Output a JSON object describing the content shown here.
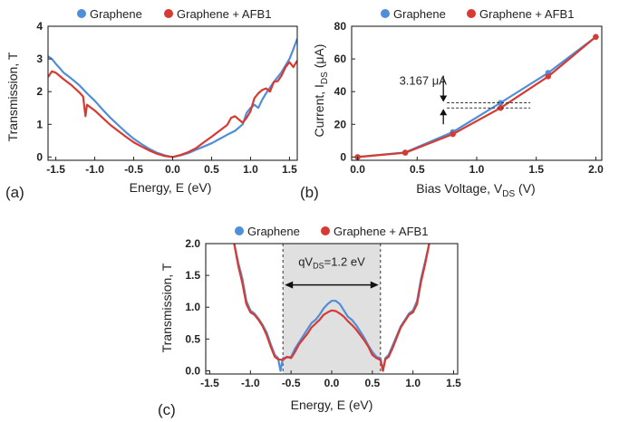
{
  "colors": {
    "graphene": "#4f8ed8",
    "afb1": "#d63a31",
    "shade": "#e0e0e0",
    "axis": "#222222"
  },
  "legend": {
    "graphene": "Graphene",
    "afb1": "Graphene + AFB1"
  },
  "panels": {
    "a": {
      "label": "(a)",
      "ylabel": "Transmission, T",
      "xlabel": "Energy, E (eV)"
    },
    "b": {
      "label": "(b)",
      "ylabel": "Current, I",
      "ylabel_sub": "DS",
      "ylabel_unit": " (μA)",
      "xlabel": "Bias Voltage, V",
      "xlabel_sub": "DS",
      "xlabel_unit": " (V)",
      "annotation": "3.167 μA"
    },
    "c": {
      "label": "(c)",
      "ylabel": "Transmission, T",
      "xlabel": "Energy, E (eV)",
      "annotation_pre": "qV",
      "annotation_sub": "DS",
      "annotation_post": "=1.2 eV"
    }
  },
  "chart_data": [
    {
      "type": "line",
      "panel": "a",
      "xlabel": "Energy, E (eV)",
      "ylabel": "Transmission, T",
      "xlim": [
        -1.6,
        1.6
      ],
      "ylim": [
        -0.1,
        4
      ],
      "xticks": [
        -1.5,
        -1.0,
        -0.5,
        0.0,
        0.5,
        1.0,
        1.5
      ],
      "xtick_labels": [
        "-1.5",
        "-1.0",
        "-0.5",
        "0.0",
        "0.5",
        "1.0",
        "1.5"
      ],
      "yticks": [
        0,
        1,
        2,
        3,
        4
      ],
      "ytick_labels": [
        "0",
        "1",
        "2",
        "3",
        "4"
      ],
      "grid": false,
      "legend_position": "top",
      "series": [
        {
          "name": "Graphene",
          "color": "#4f8ed8",
          "points": [
            [
              -1.6,
              3.08
            ],
            [
              -1.55,
              3.0
            ],
            [
              -1.5,
              2.85
            ],
            [
              -1.45,
              2.72
            ],
            [
              -1.4,
              2.58
            ],
            [
              -1.3,
              2.4
            ],
            [
              -1.2,
              2.2
            ],
            [
              -1.1,
              1.95
            ],
            [
              -1.0,
              1.72
            ],
            [
              -0.9,
              1.45
            ],
            [
              -0.8,
              1.2
            ],
            [
              -0.7,
              0.98
            ],
            [
              -0.6,
              0.76
            ],
            [
              -0.5,
              0.56
            ],
            [
              -0.4,
              0.4
            ],
            [
              -0.3,
              0.25
            ],
            [
              -0.2,
              0.13
            ],
            [
              -0.1,
              0.05
            ],
            [
              0.0,
              0.0
            ],
            [
              0.1,
              0.05
            ],
            [
              0.2,
              0.12
            ],
            [
              0.3,
              0.22
            ],
            [
              0.4,
              0.32
            ],
            [
              0.5,
              0.42
            ],
            [
              0.6,
              0.55
            ],
            [
              0.7,
              0.68
            ],
            [
              0.8,
              0.8
            ],
            [
              0.9,
              1.0
            ],
            [
              0.95,
              1.35
            ],
            [
              1.0,
              1.5
            ],
            [
              1.05,
              1.6
            ],
            [
              1.1,
              1.5
            ],
            [
              1.15,
              1.75
            ],
            [
              1.2,
              1.95
            ],
            [
              1.3,
              2.3
            ],
            [
              1.4,
              2.6
            ],
            [
              1.5,
              3.0
            ],
            [
              1.55,
              3.3
            ],
            [
              1.6,
              3.62
            ]
          ]
        },
        {
          "name": "Graphene + AFB1",
          "color": "#d63a31",
          "points": [
            [
              -1.6,
              2.45
            ],
            [
              -1.55,
              2.62
            ],
            [
              -1.5,
              2.58
            ],
            [
              -1.45,
              2.48
            ],
            [
              -1.4,
              2.38
            ],
            [
              -1.3,
              2.2
            ],
            [
              -1.2,
              1.98
            ],
            [
              -1.15,
              1.85
            ],
            [
              -1.12,
              1.25
            ],
            [
              -1.1,
              1.6
            ],
            [
              -1.0,
              1.42
            ],
            [
              -0.9,
              1.2
            ],
            [
              -0.8,
              0.98
            ],
            [
              -0.7,
              0.8
            ],
            [
              -0.6,
              0.62
            ],
            [
              -0.5,
              0.45
            ],
            [
              -0.4,
              0.32
            ],
            [
              -0.3,
              0.2
            ],
            [
              -0.2,
              0.1
            ],
            [
              -0.1,
              0.03
            ],
            [
              0.0,
              0.0
            ],
            [
              0.1,
              0.06
            ],
            [
              0.2,
              0.15
            ],
            [
              0.3,
              0.27
            ],
            [
              0.4,
              0.45
            ],
            [
              0.5,
              0.62
            ],
            [
              0.6,
              0.8
            ],
            [
              0.7,
              0.98
            ],
            [
              0.75,
              1.2
            ],
            [
              0.8,
              1.25
            ],
            [
              0.85,
              1.15
            ],
            [
              0.9,
              1.05
            ],
            [
              0.95,
              1.2
            ],
            [
              1.0,
              1.4
            ],
            [
              1.05,
              1.8
            ],
            [
              1.1,
              1.95
            ],
            [
              1.15,
              2.05
            ],
            [
              1.2,
              2.1
            ],
            [
              1.25,
              2.0
            ],
            [
              1.3,
              2.3
            ],
            [
              1.35,
              2.32
            ],
            [
              1.4,
              2.5
            ],
            [
              1.45,
              2.75
            ],
            [
              1.5,
              2.9
            ],
            [
              1.55,
              2.75
            ],
            [
              1.6,
              2.95
            ]
          ]
        }
      ]
    },
    {
      "type": "line",
      "panel": "b",
      "xlabel": "Bias Voltage, VDS (V)",
      "ylabel": "Current, IDS (μA)",
      "xlim": [
        -0.05,
        2.05
      ],
      "ylim": [
        -2,
        80
      ],
      "xticks": [
        0.0,
        0.5,
        1.0,
        1.5,
        2.0
      ],
      "xtick_labels": [
        "0.0",
        "0.5",
        "1.0",
        "1.5",
        "2.0"
      ],
      "yticks": [
        0,
        20,
        40,
        60,
        80
      ],
      "ytick_labels": [
        "0",
        "20",
        "40",
        "60",
        "80"
      ],
      "grid": false,
      "legend_position": "top",
      "annotation": {
        "text": "3.167 μA",
        "at_x": 1.2,
        "between": [
          33.17,
          30.0
        ]
      },
      "series": [
        {
          "name": "Graphene",
          "color": "#4f8ed8",
          "x": [
            0.0,
            0.4,
            0.8,
            1.2,
            1.6,
            2.0
          ],
          "y": [
            0.0,
            2.8,
            15.3,
            33.17,
            51.5,
            73.5
          ]
        },
        {
          "name": "Graphene + AFB1",
          "color": "#d63a31",
          "x": [
            0.0,
            0.4,
            0.8,
            1.2,
            1.6,
            2.0
          ],
          "y": [
            0.0,
            2.6,
            14.0,
            30.0,
            49.3,
            73.5
          ]
        }
      ]
    },
    {
      "type": "line",
      "panel": "c",
      "xlabel": "Energy, E (eV)",
      "ylabel": "Transmission, T",
      "xlim": [
        -1.55,
        1.55
      ],
      "ylim": [
        -0.05,
        2.0
      ],
      "xticks": [
        -1.5,
        -1.0,
        -0.5,
        0.0,
        0.5,
        1.0,
        1.5
      ],
      "xtick_labels": [
        "-1.5",
        "-1.0",
        "-0.5",
        "0.0",
        "0.5",
        "1.0",
        "1.5"
      ],
      "yticks": [
        0.0,
        0.5,
        1.0,
        1.5,
        2.0
      ],
      "ytick_labels": [
        "0.0",
        "0.5",
        "1.0",
        "1.5",
        "2.0"
      ],
      "grid": false,
      "legend_position": "top",
      "shaded_window": [
        -0.6,
        0.6
      ],
      "annotation": {
        "text": "qVDS=1.2 eV",
        "arrow": [
          -0.6,
          0.6
        ],
        "y": 1.65
      },
      "series": [
        {
          "name": "Graphene",
          "color": "#4f8ed8",
          "points": [
            [
              -1.2,
              2.0
            ],
            [
              -1.15,
              1.7
            ],
            [
              -1.1,
              1.45
            ],
            [
              -1.05,
              1.1
            ],
            [
              -1.0,
              0.95
            ],
            [
              -0.95,
              0.9
            ],
            [
              -0.9,
              0.82
            ],
            [
              -0.85,
              0.72
            ],
            [
              -0.8,
              0.6
            ],
            [
              -0.75,
              0.42
            ],
            [
              -0.7,
              0.25
            ],
            [
              -0.66,
              0.2
            ],
            [
              -0.63,
              0.0
            ],
            [
              -0.6,
              0.2
            ],
            [
              -0.5,
              0.22
            ],
            [
              -0.45,
              0.35
            ],
            [
              -0.4,
              0.45
            ],
            [
              -0.3,
              0.65
            ],
            [
              -0.25,
              0.75
            ],
            [
              -0.2,
              0.8
            ],
            [
              -0.15,
              0.88
            ],
            [
              -0.1,
              0.98
            ],
            [
              -0.05,
              1.05
            ],
            [
              0.0,
              1.1
            ],
            [
              0.05,
              1.1
            ],
            [
              0.1,
              1.05
            ],
            [
              0.15,
              0.95
            ],
            [
              0.2,
              0.85
            ],
            [
              0.25,
              0.8
            ],
            [
              0.3,
              0.72
            ],
            [
              0.4,
              0.52
            ],
            [
              0.45,
              0.4
            ],
            [
              0.5,
              0.3
            ],
            [
              0.55,
              0.22
            ],
            [
              0.6,
              0.2
            ],
            [
              0.63,
              0.0
            ],
            [
              0.66,
              0.2
            ],
            [
              0.7,
              0.25
            ],
            [
              0.75,
              0.4
            ],
            [
              0.8,
              0.55
            ],
            [
              0.85,
              0.7
            ],
            [
              0.9,
              0.8
            ],
            [
              0.95,
              0.9
            ],
            [
              1.0,
              0.95
            ],
            [
              1.05,
              1.1
            ],
            [
              1.1,
              1.45
            ],
            [
              1.15,
              1.72
            ],
            [
              1.2,
              2.0
            ]
          ]
        },
        {
          "name": "Graphene + AFB1",
          "color": "#d63a31",
          "points": [
            [
              -1.2,
              2.0
            ],
            [
              -1.15,
              1.65
            ],
            [
              -1.1,
              1.38
            ],
            [
              -1.05,
              1.05
            ],
            [
              -1.0,
              0.92
            ],
            [
              -0.95,
              0.88
            ],
            [
              -0.9,
              0.8
            ],
            [
              -0.85,
              0.7
            ],
            [
              -0.8,
              0.56
            ],
            [
              -0.75,
              0.38
            ],
            [
              -0.7,
              0.22
            ],
            [
              -0.66,
              0.18
            ],
            [
              -0.6,
              0.17
            ],
            [
              -0.55,
              0.22
            ],
            [
              -0.5,
              0.2
            ],
            [
              -0.45,
              0.3
            ],
            [
              -0.4,
              0.42
            ],
            [
              -0.3,
              0.58
            ],
            [
              -0.25,
              0.68
            ],
            [
              -0.2,
              0.74
            ],
            [
              -0.15,
              0.8
            ],
            [
              -0.1,
              0.88
            ],
            [
              -0.05,
              0.92
            ],
            [
              0.0,
              0.95
            ],
            [
              0.05,
              0.94
            ],
            [
              0.1,
              0.9
            ],
            [
              0.15,
              0.85
            ],
            [
              0.2,
              0.78
            ],
            [
              0.25,
              0.72
            ],
            [
              0.3,
              0.65
            ],
            [
              0.4,
              0.48
            ],
            [
              0.45,
              0.38
            ],
            [
              0.5,
              0.25
            ],
            [
              0.55,
              0.2
            ],
            [
              0.6,
              0.17
            ],
            [
              0.63,
              0.0
            ],
            [
              0.66,
              0.18
            ],
            [
              0.7,
              0.22
            ],
            [
              0.75,
              0.36
            ],
            [
              0.8,
              0.52
            ],
            [
              0.85,
              0.68
            ],
            [
              0.9,
              0.78
            ],
            [
              0.95,
              0.88
            ],
            [
              1.0,
              0.92
            ],
            [
              1.05,
              1.05
            ],
            [
              1.1,
              1.4
            ],
            [
              1.15,
              1.68
            ],
            [
              1.2,
              2.0
            ]
          ]
        }
      ]
    }
  ]
}
